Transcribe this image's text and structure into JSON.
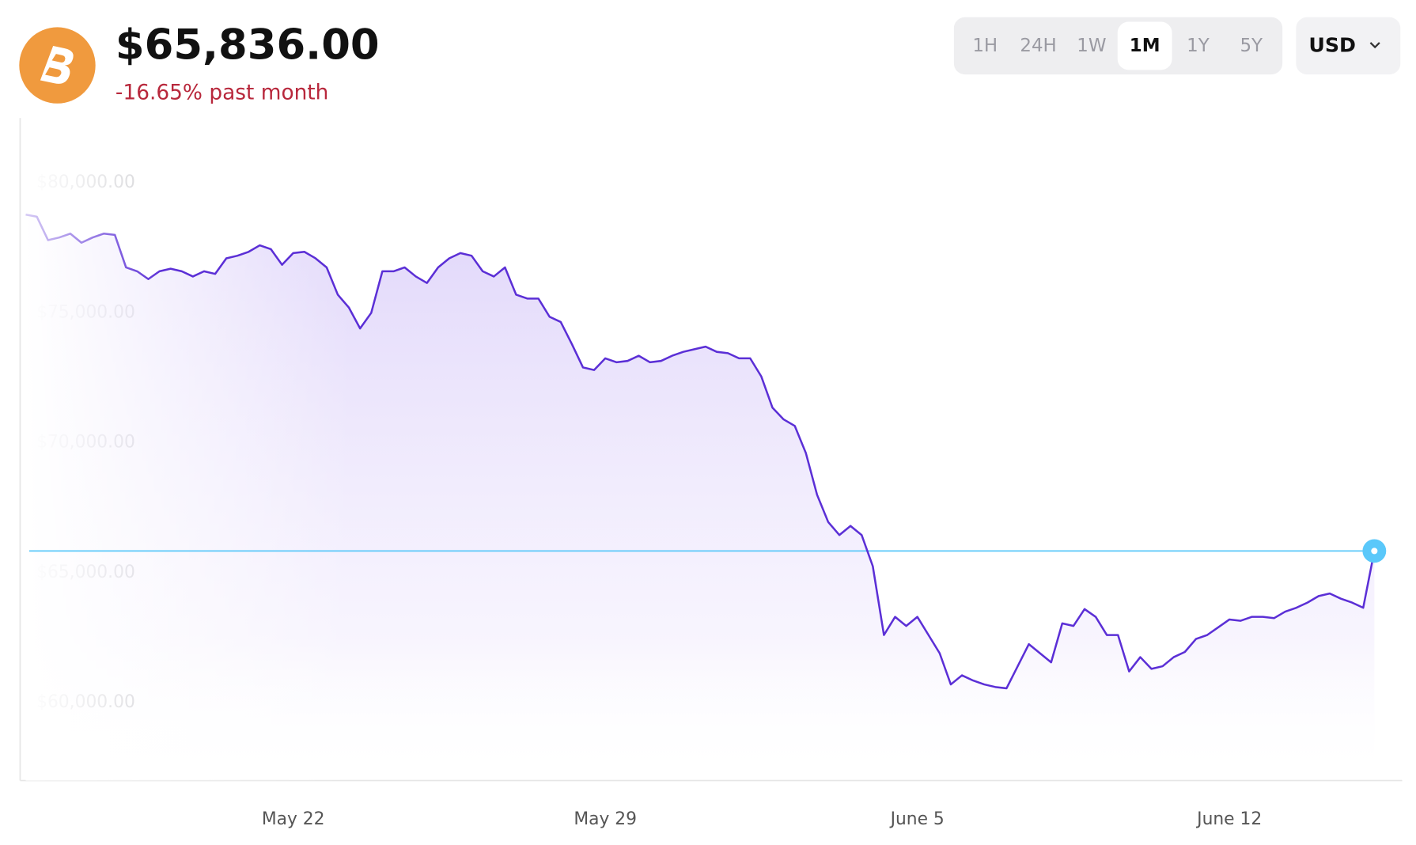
{
  "header": {
    "price": "$65,836.00",
    "change": "-16.65% past month"
  },
  "controls": {
    "ranges": [
      "1H",
      "24H",
      "1W",
      "1M",
      "1Y",
      "5Y"
    ],
    "selected_index": 3,
    "currency": "USD"
  },
  "chart_data": {
    "type": "line",
    "xlim": [
      -0.5,
      123.5
    ],
    "xticks": [
      {
        "value": 24,
        "label": "May 22"
      },
      {
        "value": 52,
        "label": "May 29"
      },
      {
        "value": 80,
        "label": "June 5"
      },
      {
        "value": 108,
        "label": "June 12"
      }
    ],
    "ylim": [
      57000,
      82500
    ],
    "yticks": [
      {
        "value": 60000,
        "label": "$60,000.00"
      },
      {
        "value": 65000,
        "label": "$65,000.00"
      },
      {
        "value": 70000,
        "label": "$70,000.00"
      },
      {
        "value": 75000,
        "label": "$75,000.00"
      },
      {
        "value": 80000,
        "label": "$80,000.00"
      }
    ],
    "series": [
      {
        "color": "#5b2fd6",
        "values": [
          78780,
          78700,
          77800,
          77900,
          78050,
          77700,
          77900,
          78050,
          78000,
          76750,
          76600,
          76300,
          76600,
          76700,
          76600,
          76400,
          76600,
          76500,
          77100,
          77200,
          77350,
          77600,
          77450,
          76850,
          77300,
          77350,
          77100,
          76750,
          75700,
          75200,
          74400,
          75000,
          76600,
          76600,
          76750,
          76400,
          76150,
          76750,
          77100,
          77300,
          77200,
          76600,
          76400,
          76750,
          75700,
          75550,
          75550,
          74850,
          74650,
          73800,
          72900,
          72800,
          73250,
          73100,
          73150,
          73350,
          73100,
          73150,
          73350,
          73500,
          73600,
          73700,
          73500,
          73450,
          73250,
          73250,
          72550,
          71350,
          70900,
          70650,
          69600,
          68000,
          66950,
          66450,
          66800,
          66450,
          65250,
          62600,
          63300,
          62950,
          63300,
          62600,
          61900,
          60700,
          61050,
          60850,
          60700,
          60600,
          60550,
          61400,
          62250,
          61900,
          61550,
          63050,
          62950,
          63600,
          63300,
          62600,
          62600,
          61200,
          61750,
          61300,
          61400,
          61750,
          61950,
          62450,
          62600,
          62900,
          63200,
          63150,
          63300,
          63300,
          63250,
          63500,
          63650,
          63850,
          64100,
          64200,
          64000,
          63850,
          63650,
          65836
        ]
      }
    ],
    "reference_color": "#5ac8fa",
    "fill": true
  }
}
